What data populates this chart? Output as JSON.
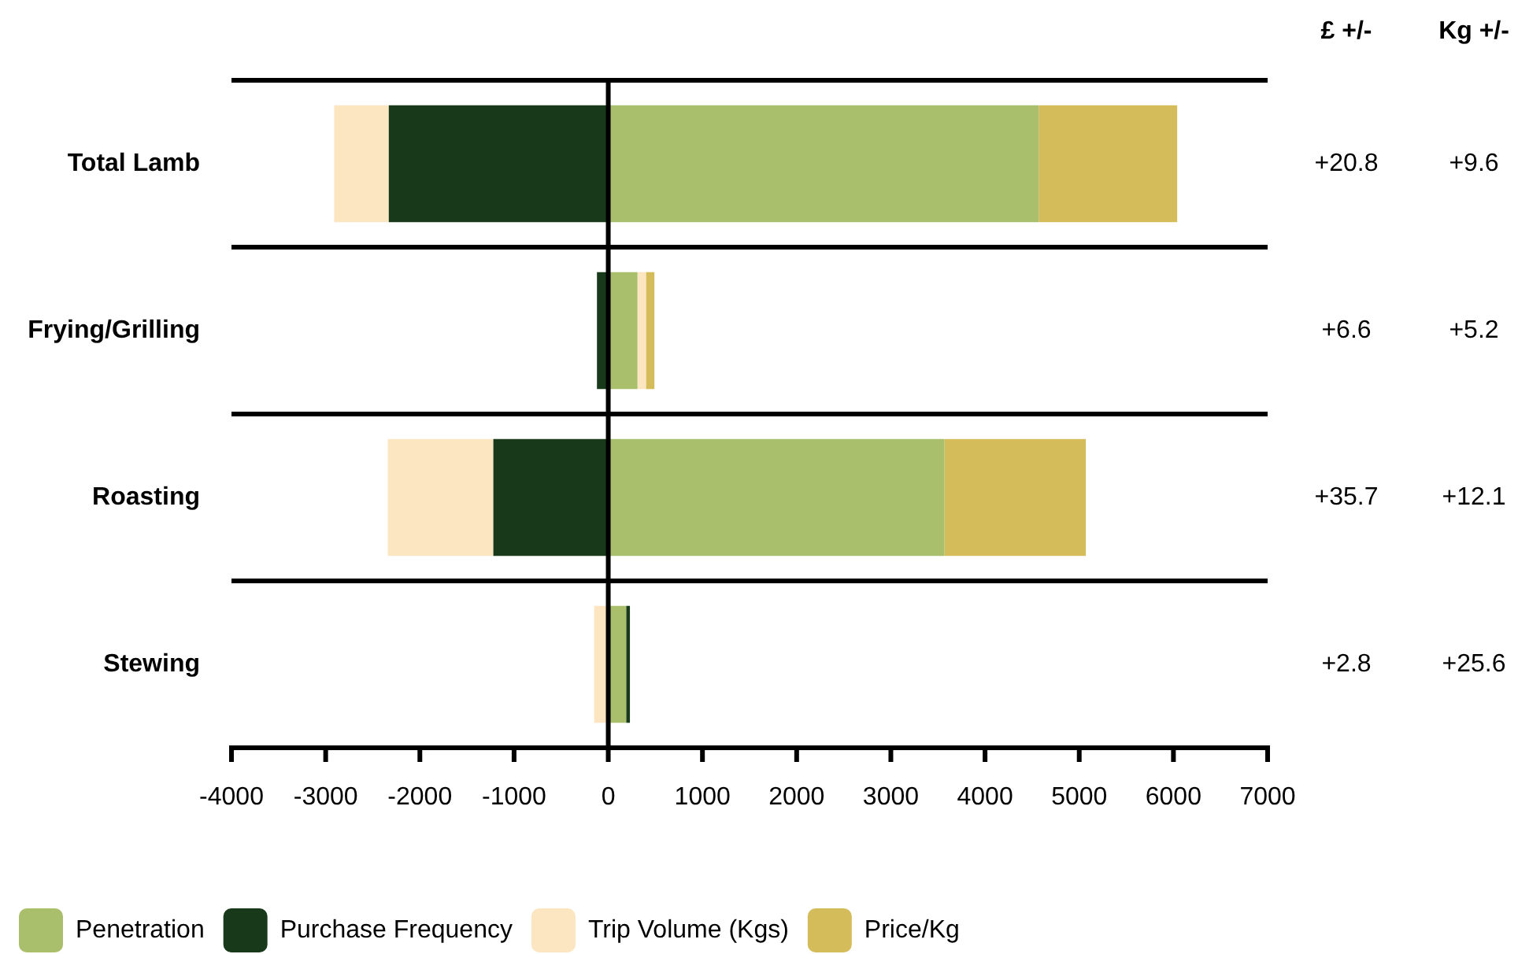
{
  "chart_data": {
    "type": "bar",
    "orientation": "horizontal",
    "stacked": true,
    "categories": [
      "Total Lamb",
      "Frying/Grilling",
      "Roasting",
      "Stewing"
    ],
    "series": [
      {
        "name": "Penetration",
        "color": "#a9bf6b",
        "values": [
          4570,
          310,
          3570,
          190
        ]
      },
      {
        "name": "Purchase Frequency",
        "color": "#183a1b",
        "values": [
          -2330,
          -120,
          -1220,
          40
        ]
      },
      {
        "name": "Trip Volume (Kgs)",
        "color": "#fce5c1",
        "values": [
          -580,
          90,
          -1120,
          -150
        ]
      },
      {
        "name": "Price/Kg",
        "color": "#d4bc5a",
        "values": [
          1470,
          90,
          1500,
          null
        ]
      }
    ],
    "xlim": [
      -4000,
      7000
    ],
    "xticks": [
      -4000,
      -3000,
      -2000,
      -1000,
      0,
      1000,
      2000,
      3000,
      4000,
      5000,
      6000,
      7000
    ],
    "ref_lines": [
      {
        "axis": "x",
        "value": 0,
        "color": "#000000"
      }
    ],
    "grid": "y",
    "legend": "bottom left",
    "annotations": [
      "£ +/-",
      "Kg +/-",
      "+20.8",
      "+9.6",
      "+6.6",
      "+5.2",
      "+35.7",
      "+12.1",
      "+2.8",
      "+25.6"
    ]
  }
}
